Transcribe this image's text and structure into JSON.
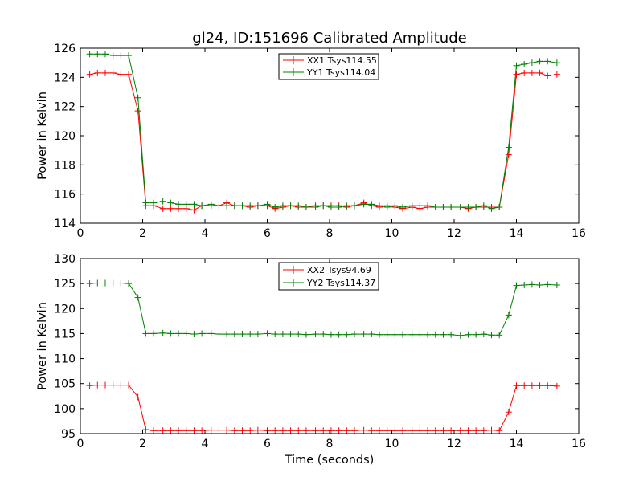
{
  "chart_data": [
    {
      "type": "line",
      "title": "gl24, ID:151696 Calibrated Amplitude",
      "xlabel": "",
      "ylabel": "Power in Kelvin",
      "xlim": [
        0,
        16
      ],
      "ylim": [
        114,
        126
      ],
      "xticks": [
        "0",
        "2",
        "4",
        "6",
        "8",
        "10",
        "12",
        "14",
        "16"
      ],
      "yticks": [
        "114",
        "116",
        "118",
        "120",
        "122",
        "124",
        "126"
      ],
      "legend_position": "top-center",
      "x": [
        0.3,
        0.55,
        0.8,
        1.05,
        1.3,
        1.55,
        1.85,
        2.1,
        2.35,
        2.65,
        2.9,
        3.15,
        3.4,
        3.65,
        3.9,
        4.2,
        4.45,
        4.7,
        4.95,
        5.2,
        5.45,
        5.7,
        6.0,
        6.25,
        6.5,
        6.75,
        7.0,
        7.25,
        7.55,
        7.8,
        8.05,
        8.3,
        8.55,
        8.8,
        9.1,
        9.35,
        9.6,
        9.85,
        10.1,
        10.35,
        10.65,
        10.9,
        11.15,
        11.4,
        11.65,
        11.9,
        12.2,
        12.45,
        12.7,
        12.95,
        13.2,
        13.45,
        13.75,
        14.0,
        14.25,
        14.5,
        14.75,
        15.0,
        15.3
      ],
      "series": [
        {
          "name": "XX1 Tsys114.55",
          "color": "#ff0000",
          "values": [
            124.2,
            124.3,
            124.3,
            124.3,
            124.2,
            124.2,
            121.7,
            115.2,
            115.2,
            115.0,
            115.0,
            115.0,
            115.0,
            114.9,
            115.2,
            115.2,
            115.2,
            115.4,
            115.2,
            115.2,
            115.1,
            115.2,
            115.2,
            115.0,
            115.1,
            115.2,
            115.1,
            115.1,
            115.2,
            115.2,
            115.2,
            115.2,
            115.1,
            115.2,
            115.4,
            115.2,
            115.1,
            115.2,
            115.1,
            115.0,
            115.1,
            115.0,
            115.1,
            115.1,
            115.1,
            115.1,
            115.1,
            115.0,
            115.1,
            115.1,
            115.1,
            115.1,
            118.7,
            124.2,
            124.3,
            124.3,
            124.3,
            124.1,
            124.2
          ]
        },
        {
          "name": "YY1 Tsys114.04",
          "color": "#008000",
          "values": [
            125.6,
            125.6,
            125.6,
            125.5,
            125.5,
            125.5,
            122.6,
            115.4,
            115.4,
            115.5,
            115.4,
            115.3,
            115.3,
            115.3,
            115.2,
            115.3,
            115.2,
            115.2,
            115.2,
            115.2,
            115.2,
            115.2,
            115.3,
            115.1,
            115.2,
            115.2,
            115.2,
            115.1,
            115.1,
            115.2,
            115.1,
            115.1,
            115.2,
            115.2,
            115.3,
            115.3,
            115.2,
            115.1,
            115.2,
            115.1,
            115.2,
            115.2,
            115.2,
            115.1,
            115.1,
            115.1,
            115.1,
            115.1,
            115.1,
            115.2,
            115.0,
            115.1,
            119.2,
            124.8,
            124.9,
            125.0,
            125.1,
            125.1,
            125.0
          ]
        }
      ]
    },
    {
      "type": "line",
      "title": "",
      "xlabel": "Time (seconds)",
      "ylabel": "Power in Kelvin",
      "xlim": [
        0,
        16
      ],
      "ylim": [
        95,
        130
      ],
      "xticks": [
        "0",
        "2",
        "4",
        "6",
        "8",
        "10",
        "12",
        "14",
        "16"
      ],
      "yticks": [
        "95",
        "100",
        "105",
        "110",
        "115",
        "120",
        "125",
        "130"
      ],
      "legend_position": "top-center",
      "x": [
        0.3,
        0.55,
        0.8,
        1.05,
        1.3,
        1.55,
        1.85,
        2.1,
        2.35,
        2.65,
        2.9,
        3.15,
        3.4,
        3.65,
        3.9,
        4.2,
        4.45,
        4.7,
        4.95,
        5.2,
        5.45,
        5.7,
        6.0,
        6.25,
        6.5,
        6.75,
        7.0,
        7.25,
        7.55,
        7.8,
        8.05,
        8.3,
        8.55,
        8.8,
        9.1,
        9.35,
        9.6,
        9.85,
        10.1,
        10.35,
        10.65,
        10.9,
        11.15,
        11.4,
        11.65,
        11.9,
        12.2,
        12.45,
        12.7,
        12.95,
        13.2,
        13.45,
        13.75,
        14.0,
        14.25,
        14.5,
        14.75,
        15.0,
        15.3
      ],
      "series": [
        {
          "name": "XX2 Tsys94.69",
          "color": "#ff0000",
          "values": [
            104.6,
            104.7,
            104.7,
            104.7,
            104.7,
            104.7,
            102.3,
            95.8,
            95.6,
            95.6,
            95.6,
            95.6,
            95.6,
            95.6,
            95.6,
            95.7,
            95.7,
            95.7,
            95.6,
            95.6,
            95.6,
            95.7,
            95.6,
            95.6,
            95.6,
            95.6,
            95.6,
            95.6,
            95.6,
            95.6,
            95.6,
            95.6,
            95.6,
            95.6,
            95.7,
            95.6,
            95.6,
            95.6,
            95.6,
            95.6,
            95.6,
            95.6,
            95.6,
            95.6,
            95.6,
            95.6,
            95.6,
            95.6,
            95.6,
            95.6,
            95.7,
            95.6,
            99.3,
            104.6,
            104.6,
            104.6,
            104.6,
            104.6,
            104.5
          ]
        },
        {
          "name": "YY2 Tsys114.37",
          "color": "#008000",
          "values": [
            125.0,
            125.1,
            125.1,
            125.1,
            125.1,
            125.0,
            122.2,
            115.0,
            115.0,
            115.1,
            115.0,
            115.0,
            115.0,
            114.9,
            115.0,
            115.0,
            114.9,
            114.9,
            114.9,
            114.9,
            114.9,
            114.9,
            115.0,
            114.9,
            114.9,
            114.9,
            114.9,
            114.8,
            114.9,
            114.9,
            114.8,
            114.8,
            114.8,
            114.9,
            114.9,
            114.9,
            114.8,
            114.8,
            114.8,
            114.8,
            114.8,
            114.8,
            114.8,
            114.8,
            114.8,
            114.8,
            114.6,
            114.8,
            114.8,
            114.9,
            114.7,
            114.7,
            118.7,
            124.6,
            124.7,
            124.8,
            124.7,
            124.8,
            124.7
          ]
        }
      ]
    }
  ]
}
